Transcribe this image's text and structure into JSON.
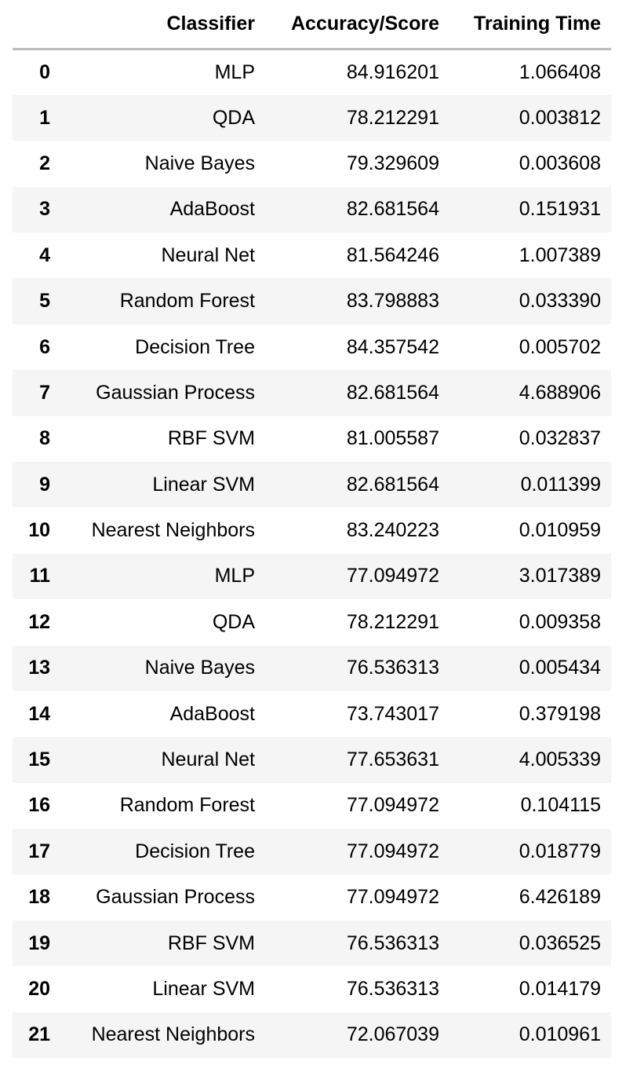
{
  "table": {
    "headers": {
      "index": "",
      "classifier": "Classifier",
      "accuracy": "Accuracy/Score",
      "time": "Training Time"
    },
    "rows": [
      {
        "index": "0",
        "classifier": "MLP",
        "accuracy": "84.916201",
        "time": "1.066408"
      },
      {
        "index": "1",
        "classifier": "QDA",
        "accuracy": "78.212291",
        "time": "0.003812"
      },
      {
        "index": "2",
        "classifier": "Naive Bayes",
        "accuracy": "79.329609",
        "time": "0.003608"
      },
      {
        "index": "3",
        "classifier": "AdaBoost",
        "accuracy": "82.681564",
        "time": "0.151931"
      },
      {
        "index": "4",
        "classifier": "Neural Net",
        "accuracy": "81.564246",
        "time": "1.007389"
      },
      {
        "index": "5",
        "classifier": "Random Forest",
        "accuracy": "83.798883",
        "time": "0.033390"
      },
      {
        "index": "6",
        "classifier": "Decision Tree",
        "accuracy": "84.357542",
        "time": "0.005702"
      },
      {
        "index": "7",
        "classifier": "Gaussian Process",
        "accuracy": "82.681564",
        "time": "4.688906"
      },
      {
        "index": "8",
        "classifier": "RBF SVM",
        "accuracy": "81.005587",
        "time": "0.032837"
      },
      {
        "index": "9",
        "classifier": "Linear SVM",
        "accuracy": "82.681564",
        "time": "0.011399"
      },
      {
        "index": "10",
        "classifier": "Nearest Neighbors",
        "accuracy": "83.240223",
        "time": "0.010959"
      },
      {
        "index": "11",
        "classifier": "MLP",
        "accuracy": "77.094972",
        "time": "3.017389"
      },
      {
        "index": "12",
        "classifier": "QDA",
        "accuracy": "78.212291",
        "time": "0.009358"
      },
      {
        "index": "13",
        "classifier": "Naive Bayes",
        "accuracy": "76.536313",
        "time": "0.005434"
      },
      {
        "index": "14",
        "classifier": "AdaBoost",
        "accuracy": "73.743017",
        "time": "0.379198"
      },
      {
        "index": "15",
        "classifier": "Neural Net",
        "accuracy": "77.653631",
        "time": "4.005339"
      },
      {
        "index": "16",
        "classifier": "Random Forest",
        "accuracy": "77.094972",
        "time": "0.104115"
      },
      {
        "index": "17",
        "classifier": "Decision Tree",
        "accuracy": "77.094972",
        "time": "0.018779"
      },
      {
        "index": "18",
        "classifier": "Gaussian Process",
        "accuracy": "77.094972",
        "time": "6.426189"
      },
      {
        "index": "19",
        "classifier": "RBF SVM",
        "accuracy": "76.536313",
        "time": "0.036525"
      },
      {
        "index": "20",
        "classifier": "Linear SVM",
        "accuracy": "76.536313",
        "time": "0.014179"
      },
      {
        "index": "21",
        "classifier": "Nearest Neighbors",
        "accuracy": "72.067039",
        "time": "0.010961"
      }
    ]
  },
  "colors": {
    "header_rule": "#bdbdbd",
    "stripe": "#f5f5f5",
    "background": "#ffffff",
    "text": "#000000"
  }
}
